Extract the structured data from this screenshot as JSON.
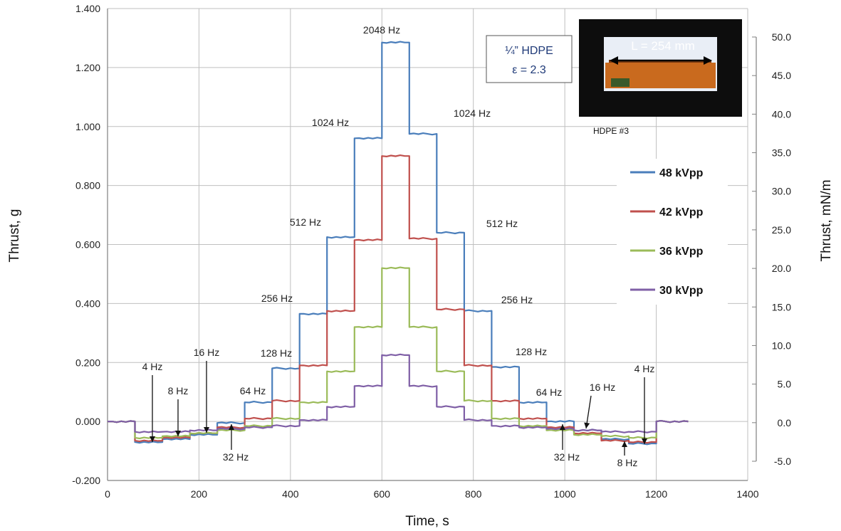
{
  "chart_data": {
    "type": "line",
    "xlabel": "Time, s",
    "ylabel": "Thrust, g",
    "y2label": "Thrust, mN/m",
    "xlim": [
      0,
      1400
    ],
    "ylim": [
      -0.2,
      1.4
    ],
    "y2lim": [
      -5.0,
      50.0
    ],
    "grid": true,
    "legend_position": "right",
    "x_ticks": [
      "0",
      "200",
      "400",
      "600",
      "800",
      "1000",
      "1200",
      "1400"
    ],
    "y_ticks": [
      "-0.200",
      "0.000",
      "0.200",
      "0.400",
      "0.600",
      "0.800",
      "1.000",
      "1.200",
      "1.400"
    ],
    "y2_ticks": [
      "-5.0",
      "0.0",
      "5.0",
      "10.0",
      "15.0",
      "20.0",
      "25.0",
      "30.0",
      "35.0",
      "40.0",
      "45.0",
      "50.0"
    ],
    "segment_bounds": [
      0,
      60,
      120,
      180,
      240,
      300,
      360,
      420,
      480,
      540,
      600,
      660,
      720,
      780,
      840,
      900,
      960,
      1020,
      1080,
      1140,
      1200,
      1270
    ],
    "series": [
      {
        "name": "48 kVpp",
        "color": "#4a7ebb",
        "values": [
          0.0,
          -0.07,
          -0.06,
          -0.045,
          -0.005,
          0.065,
          0.18,
          0.365,
          0.625,
          0.96,
          1.285,
          0.975,
          0.64,
          0.375,
          0.185,
          0.065,
          0.0,
          -0.03,
          -0.06,
          -0.075,
          0.0
        ]
      },
      {
        "name": "42 kVpp",
        "color": "#c0504d",
        "values": [
          0.0,
          -0.065,
          -0.055,
          -0.04,
          -0.02,
          0.01,
          0.07,
          0.19,
          0.375,
          0.615,
          0.9,
          0.62,
          0.38,
          0.19,
          0.07,
          0.01,
          -0.02,
          -0.04,
          -0.065,
          -0.07,
          0.0
        ]
      },
      {
        "name": "36 kVpp",
        "color": "#9bbb59",
        "values": [
          0.0,
          -0.055,
          -0.05,
          -0.04,
          -0.03,
          -0.015,
          0.01,
          0.065,
          0.17,
          0.32,
          0.52,
          0.32,
          0.17,
          0.07,
          0.01,
          -0.015,
          -0.03,
          -0.045,
          -0.05,
          -0.055,
          0.0
        ]
      },
      {
        "name": "30 kVpp",
        "color": "#7f5fa6",
        "values": [
          0.0,
          -0.035,
          -0.035,
          -0.03,
          -0.025,
          -0.02,
          -0.015,
          0.005,
          0.05,
          0.12,
          0.225,
          0.12,
          0.05,
          0.005,
          -0.015,
          -0.02,
          -0.025,
          -0.03,
          -0.035,
          -0.035,
          0.0
        ]
      }
    ],
    "annotations": [
      "4 Hz",
      "8 Hz",
      "16 Hz",
      "32 Hz",
      "64 Hz",
      "128 Hz",
      "256 Hz",
      "512 Hz",
      "1024 Hz",
      "2048 Hz",
      "1024 Hz",
      "512 Hz",
      "256 Hz",
      "128 Hz",
      "64 Hz",
      "32 Hz",
      "16 Hz",
      "8 Hz",
      "4 Hz"
    ],
    "inset": {
      "material_line1": "¼” HDPE",
      "material_line2": "ε = 2.3",
      "photo_label": "L = 254 mm",
      "photo_caption": "HDPE #3"
    }
  },
  "colors": {
    "grid": "#bfbfbf",
    "axis": "#808080",
    "photo_bg": "#0d0d0d",
    "strip": "#c96a1e"
  }
}
